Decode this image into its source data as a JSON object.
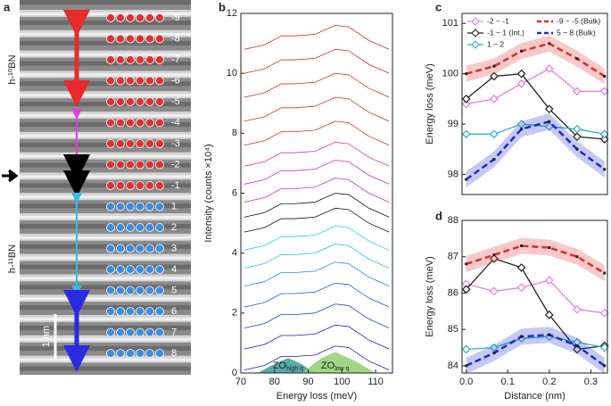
{
  "image_panel": {
    "panel_label": "a",
    "top_label": "h-¹⁰BN",
    "bottom_label": "h-¹¹BN",
    "scale_label": "1 nm",
    "layer_labels": [
      "-9",
      "-8",
      "-7",
      "-6",
      "-5",
      "-4",
      "-3",
      "-2",
      "-1",
      "1",
      "2",
      "3",
      "4",
      "5",
      "6",
      "7",
      "8"
    ]
  },
  "chart_data": [
    {
      "type": "line",
      "panel_label": "b",
      "x_label": "Energy loss (meV)",
      "y_label": "Intensity (counts ×10⁴)",
      "xlim": [
        70,
        115
      ],
      "xticks": [
        70,
        80,
        90,
        100,
        110
      ],
      "ylim": [
        0,
        12
      ],
      "yticks": [
        0,
        2,
        4,
        6,
        8,
        10,
        12
      ],
      "x": [
        71,
        77,
        82,
        86,
        92,
        98,
        102,
        108,
        114
      ],
      "areas": [
        {
          "label": "ZO",
          "sub": "high q",
          "color": "#3a9c9a",
          "x": [
            75,
            80,
            84,
            88,
            92
          ],
          "values": [
            0,
            0.3,
            0.5,
            0.3,
            0
          ]
        },
        {
          "label": "ZO",
          "sub": "low q",
          "color": "#8fcf6f",
          "x": [
            88,
            94,
            98,
            104,
            110
          ],
          "values": [
            0,
            0.5,
            0.7,
            0.4,
            0
          ]
        }
      ],
      "series": [
        {
          "color": "#1a1acc",
          "values": [
            0.1,
            0.25,
            0.55,
            0.55,
            0.6,
            0.9,
            0.85,
            0.4,
            0.1
          ]
        },
        {
          "color": "#1a1acc",
          "values": [
            0.8,
            0.95,
            1.25,
            1.25,
            1.3,
            1.6,
            1.55,
            1.1,
            0.8
          ]
        },
        {
          "color": "#2a3ae0",
          "values": [
            1.5,
            1.65,
            1.95,
            1.95,
            2.0,
            2.3,
            2.25,
            1.8,
            1.5
          ]
        },
        {
          "color": "#2a5ae8",
          "values": [
            2.2,
            2.35,
            2.65,
            2.65,
            2.7,
            3.0,
            2.95,
            2.5,
            2.2
          ]
        },
        {
          "color": "#2a8ae8",
          "values": [
            2.9,
            3.05,
            3.35,
            3.35,
            3.4,
            3.7,
            3.65,
            3.2,
            2.9
          ]
        },
        {
          "color": "#22c8d8",
          "values": [
            3.5,
            3.65,
            3.95,
            3.95,
            4.0,
            4.3,
            4.25,
            3.8,
            3.5
          ]
        },
        {
          "color": "#22d8d8",
          "values": [
            4.1,
            4.25,
            4.55,
            4.55,
            4.6,
            4.9,
            4.85,
            4.4,
            4.1
          ]
        },
        {
          "color": "#111111",
          "values": [
            4.7,
            4.85,
            5.15,
            5.15,
            5.2,
            5.5,
            5.45,
            5.0,
            4.7
          ]
        },
        {
          "color": "#111111",
          "values": [
            5.2,
            5.35,
            5.65,
            5.65,
            5.7,
            6.0,
            5.95,
            5.5,
            5.2
          ]
        },
        {
          "color": "#d82ad8",
          "values": [
            5.7,
            5.85,
            6.15,
            6.15,
            6.2,
            6.5,
            6.45,
            6.0,
            5.7
          ]
        },
        {
          "color": "#d82ad8",
          "values": [
            6.3,
            6.45,
            6.75,
            6.75,
            6.8,
            7.1,
            7.05,
            6.6,
            6.3
          ]
        },
        {
          "color": "#e0309a",
          "values": [
            6.9,
            7.05,
            7.35,
            7.35,
            7.4,
            7.7,
            7.65,
            7.2,
            6.9
          ]
        },
        {
          "color": "#e02a2a",
          "values": [
            7.6,
            7.75,
            8.05,
            8.05,
            8.1,
            8.4,
            8.35,
            7.9,
            7.6
          ]
        },
        {
          "color": "#e02a2a",
          "values": [
            8.4,
            8.55,
            8.85,
            8.85,
            8.9,
            9.2,
            9.15,
            8.7,
            8.4
          ]
        },
        {
          "color": "#e02a2a",
          "values": [
            9.2,
            9.35,
            9.65,
            9.65,
            9.7,
            10.0,
            9.95,
            9.5,
            9.2
          ]
        },
        {
          "color": "#e02a2a",
          "values": [
            10.0,
            10.15,
            10.45,
            10.45,
            10.5,
            10.8,
            10.75,
            10.3,
            10.0
          ]
        },
        {
          "color": "#e02a2a",
          "values": [
            10.8,
            10.95,
            11.25,
            11.25,
            11.3,
            11.6,
            11.55,
            11.1,
            10.8
          ]
        }
      ]
    },
    {
      "type": "line",
      "panel_label": "c",
      "y_label": "Energy loss (meV)",
      "legend": "top",
      "xlim": [
        -0.01,
        0.34
      ],
      "ylim": [
        97.6,
        101.2
      ],
      "yticks": [
        98,
        99,
        100,
        101
      ],
      "x": [
        0,
        0.067,
        0.133,
        0.2,
        0.267,
        0.333
      ],
      "series": [
        {
          "name": "-2 ~ -1",
          "color": "#e67de6",
          "marker": "diamond",
          "values": [
            99.4,
            99.5,
            99.8,
            100.1,
            99.65,
            99.65
          ]
        },
        {
          "name": "-1 ~ 1 (Int.)",
          "color": "#222222",
          "marker": "diamond",
          "values": [
            99.5,
            99.95,
            100.0,
            99.3,
            98.75,
            98.7
          ]
        },
        {
          "name": "1 ~ 2",
          "color": "#2ab0c8",
          "marker": "diamond",
          "values": [
            98.8,
            98.8,
            99.0,
            98.95,
            98.9,
            98.8
          ]
        },
        {
          "name": "-9 ~ -5 (Bulk)",
          "color": "#e02a2a",
          "dashed": true,
          "band": true,
          "marker": "square",
          "values": [
            100.0,
            100.15,
            100.45,
            100.6,
            100.3,
            99.95
          ]
        },
        {
          "name": "5 ~ 8 (Bulk)",
          "color": "#1a2ad0",
          "dashed": true,
          "band": true,
          "marker": "square",
          "values": [
            97.9,
            98.3,
            98.9,
            99.05,
            98.5,
            98.1
          ]
        }
      ]
    },
    {
      "type": "line",
      "panel_label": "d",
      "x_label": "Distance (nm)",
      "y_label": "Energy loss (meV)",
      "xlim": [
        -0.01,
        0.34
      ],
      "xticks": [
        {
          "value": 0,
          "label": "0.0"
        },
        0.1,
        0.2,
        0.3
      ],
      "ylim": [
        83.8,
        88
      ],
      "yticks": [
        84,
        85,
        86,
        87,
        88
      ],
      "x": [
        0,
        0.067,
        0.133,
        0.2,
        0.267,
        0.333
      ],
      "series": [
        {
          "color": "#e67de6",
          "marker": "diamond",
          "values": [
            86.25,
            86.05,
            86.15,
            86.35,
            85.55,
            85.45
          ]
        },
        {
          "color": "#222222",
          "marker": "diamond",
          "values": [
            86.1,
            86.95,
            86.7,
            85.4,
            84.45,
            84.55
          ]
        },
        {
          "color": "#2ab0c8",
          "marker": "diamond",
          "values": [
            84.45,
            84.5,
            84.75,
            84.8,
            84.65,
            84.5
          ]
        },
        {
          "color": "#e02a2a",
          "dashed": true,
          "band": true,
          "marker": "square",
          "values": [
            86.8,
            87.05,
            87.3,
            87.25,
            87.0,
            86.55
          ]
        },
        {
          "color": "#1a2ad0",
          "dashed": true,
          "band": true,
          "marker": "square",
          "values": [
            84.0,
            84.35,
            84.8,
            84.85,
            84.55,
            84.0
          ]
        }
      ]
    }
  ]
}
